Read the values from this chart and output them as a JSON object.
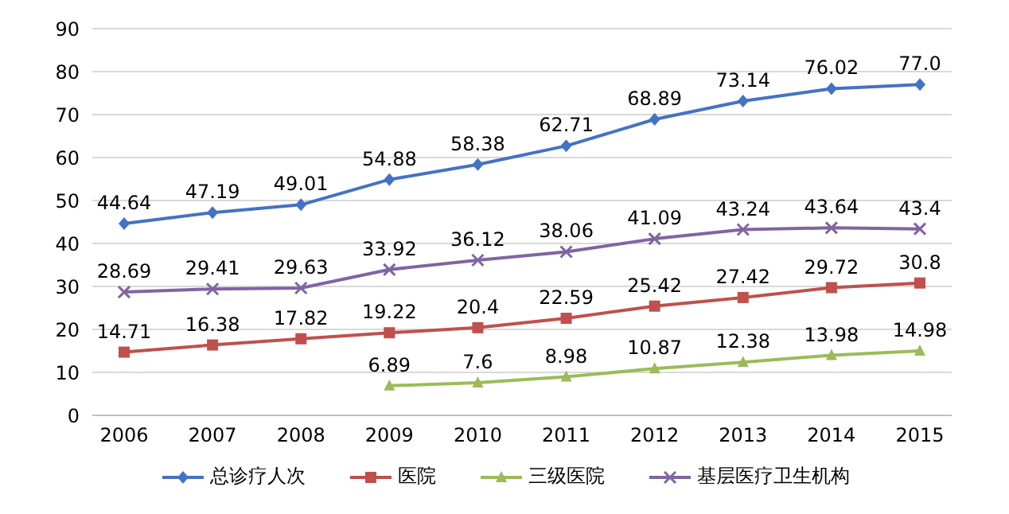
{
  "chart_data": {
    "type": "line",
    "categories": [
      "2006",
      "2007",
      "2008",
      "2009",
      "2010",
      "2011",
      "2012",
      "2013",
      "2014",
      "2015"
    ],
    "series": [
      {
        "name": "总诊疗人次",
        "color": "#4472c4",
        "marker": "diamond",
        "values": [
          44.64,
          47.19,
          49.01,
          54.88,
          58.38,
          62.71,
          68.89,
          73.14,
          76.02,
          77.0
        ],
        "value_labels": [
          "44.64",
          "47.19",
          "49.01",
          "54.88",
          "58.38",
          "62.71",
          "68.89",
          "73.14",
          "76.02",
          "77.0"
        ]
      },
      {
        "name": "医院",
        "color": "#c0504d",
        "marker": "square",
        "values": [
          14.71,
          16.38,
          17.82,
          19.22,
          20.4,
          22.59,
          25.42,
          27.42,
          29.72,
          30.8
        ],
        "value_labels": [
          "14.71",
          "16.38",
          "17.82",
          "19.22",
          "20.4",
          "22.59",
          "25.42",
          "27.42",
          "29.72",
          "30.8"
        ]
      },
      {
        "name": "三级医院",
        "color": "#9bbb59",
        "marker": "triangle",
        "values": [
          null,
          null,
          null,
          6.89,
          7.6,
          8.98,
          10.87,
          12.38,
          13.98,
          14.98
        ],
        "value_labels": [
          null,
          null,
          null,
          "6.89",
          "7.6",
          "8.98",
          "10.87",
          "12.38",
          "13.98",
          "14.98"
        ]
      },
      {
        "name": "基层医疗卫生机构",
        "color": "#8064a2",
        "marker": "cross",
        "values": [
          28.69,
          29.41,
          29.63,
          33.92,
          36.12,
          38.06,
          41.09,
          43.24,
          43.64,
          43.4
        ],
        "value_labels": [
          "28.69",
          "29.41",
          "29.63",
          "33.92",
          "36.12",
          "38.06",
          "41.09",
          "43.24",
          "43.64",
          "43.4"
        ]
      }
    ],
    "ylim": [
      0,
      90
    ],
    "yticks": [
      0,
      10,
      20,
      30,
      40,
      50,
      60,
      70,
      80,
      90
    ],
    "grid": "y",
    "legend": "bottom",
    "line_style": "solid"
  }
}
